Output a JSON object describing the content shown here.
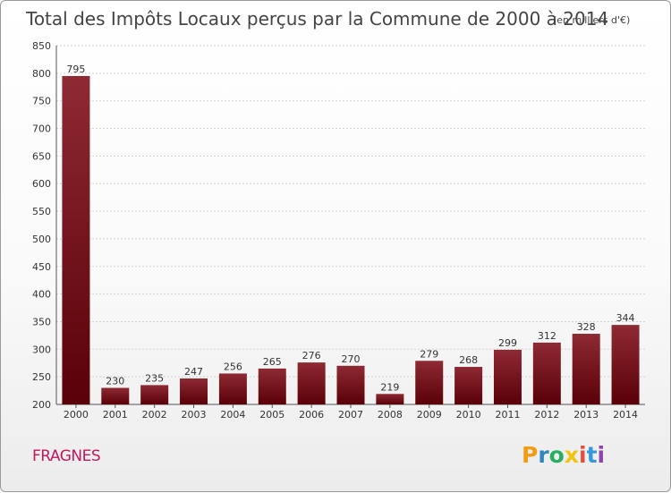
{
  "chart_data": {
    "type": "bar",
    "title": "Total des Impôts Locaux perçus par la Commune de 2000 à 2014",
    "subtitle": "(en milliers d'€)",
    "categories": [
      "2000",
      "2001",
      "2002",
      "2003",
      "2004",
      "2005",
      "2006",
      "2007",
      "2008",
      "2009",
      "2010",
      "2011",
      "2012",
      "2013",
      "2014"
    ],
    "values": [
      795,
      230,
      235,
      247,
      256,
      265,
      276,
      270,
      219,
      279,
      268,
      299,
      312,
      328,
      344
    ],
    "ylim": [
      200,
      850
    ],
    "yticks": [
      200,
      250,
      300,
      350,
      400,
      450,
      500,
      550,
      600,
      650,
      700,
      750,
      800,
      850
    ],
    "grid": true,
    "bar_color": "#7a0f19",
    "xlabel": "",
    "ylabel": ""
  },
  "commune": "FRAGNES",
  "brand": {
    "letters": [
      "P",
      "r",
      "o",
      "x",
      "i",
      "t",
      "i"
    ],
    "colors": [
      "#f39c12",
      "#2e86c1",
      "#27ae60",
      "#f1c40f",
      "#e74c3c",
      "#3498db",
      "#8e44ad"
    ]
  }
}
